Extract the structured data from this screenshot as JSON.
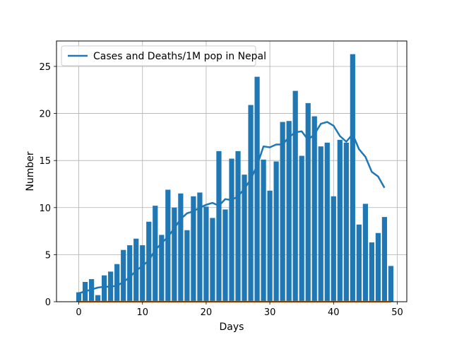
{
  "chart_data": {
    "type": "bar",
    "xlabel": "Days",
    "ylabel": "Number",
    "xlim": [
      -3.5,
      51.5
    ],
    "ylim": [
      0,
      27.7
    ],
    "x_ticks": [
      0,
      10,
      20,
      30,
      40,
      50
    ],
    "y_ticks": [
      0,
      5,
      10,
      15,
      20,
      25
    ],
    "grid": true,
    "legend_position": "upper-left",
    "x": [
      0,
      1,
      2,
      3,
      4,
      5,
      6,
      7,
      8,
      9,
      10,
      11,
      12,
      13,
      14,
      15,
      16,
      17,
      18,
      19,
      20,
      21,
      22,
      23,
      24,
      25,
      26,
      27,
      28,
      29,
      30,
      31,
      32,
      33,
      34,
      35,
      36,
      37,
      38,
      39,
      40,
      41,
      42,
      43,
      44,
      45,
      46,
      47,
      48,
      49
    ],
    "bar_values": [
      1.0,
      2.1,
      2.4,
      0.7,
      2.8,
      3.2,
      4.0,
      5.5,
      6.0,
      6.7,
      6.0,
      8.5,
      10.2,
      7.1,
      11.9,
      10.0,
      11.5,
      7.6,
      11.2,
      11.6,
      10.1,
      8.9,
      16.0,
      9.8,
      15.2,
      16.0,
      13.5,
      20.9,
      23.9,
      15.1,
      11.8,
      14.9,
      19.1,
      19.2,
      22.4,
      15.5,
      21.1,
      19.7,
      16.5,
      16.9,
      11.2,
      17.2,
      16.9,
      26.3,
      8.2,
      10.4,
      6.3,
      7.3,
      9.0,
      3.8
    ],
    "bar_color": "#1f77b4",
    "series": [
      {
        "name": "Cases and Deaths/1M pop in Nepal",
        "color": "#1f77b4",
        "values": [
          0.9,
          1.1,
          1.3,
          1.5,
          1.6,
          1.6,
          1.7,
          2.1,
          2.6,
          3.3,
          3.8,
          4.4,
          5.5,
          6.2,
          6.9,
          7.8,
          8.8,
          9.4,
          9.6,
          10.0,
          10.3,
          10.5,
          10.2,
          10.9,
          10.8,
          11.2,
          12.0,
          13.0,
          14.5,
          16.5,
          16.4,
          16.7,
          16.7,
          17.5,
          18.0,
          18.1,
          17.2,
          17.8,
          18.9,
          19.1,
          18.7,
          17.6,
          17.0,
          17.8,
          16.2,
          15.4,
          13.8,
          13.3,
          12.1,
          null
        ]
      },
      {
        "name": "",
        "color": "#ff7f0e",
        "values": [
          0,
          0,
          0,
          0,
          0,
          0,
          0,
          0,
          0,
          0,
          0,
          0,
          0,
          0,
          0,
          0,
          0,
          0,
          0,
          0,
          0,
          0,
          0,
          0,
          0,
          0,
          0,
          0,
          0,
          0,
          0,
          0,
          0,
          0,
          0,
          0,
          0,
          0,
          0,
          0,
          0,
          0,
          0,
          0,
          0,
          0,
          0,
          0,
          0,
          0
        ]
      }
    ]
  }
}
